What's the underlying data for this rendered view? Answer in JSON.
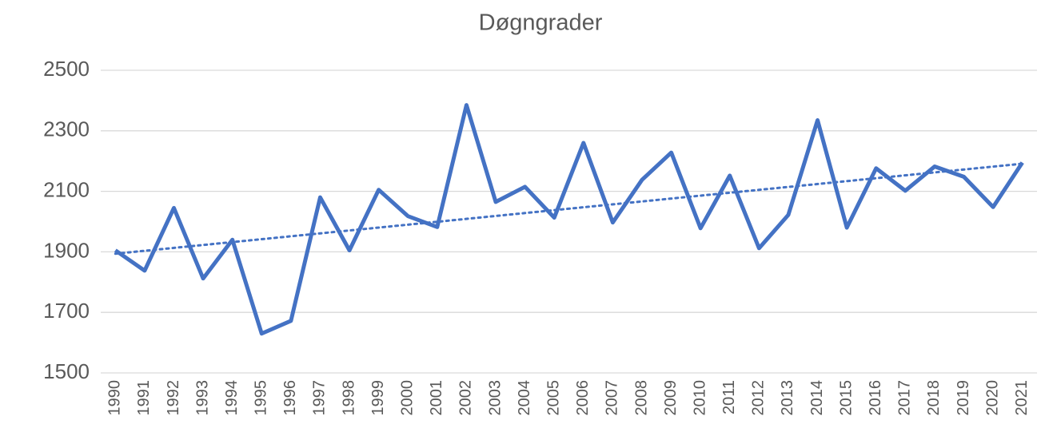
{
  "chart_data": {
    "type": "line",
    "title": "Døgngrader",
    "categories": [
      "1990",
      "1991",
      "1992",
      "1993",
      "1994",
      "1995",
      "1996",
      "1997",
      "1998",
      "1999",
      "2000",
      "2001",
      "2002",
      "2003",
      "2004",
      "2005",
      "2006",
      "2007",
      "2008",
      "2009",
      "2010",
      "2011",
      "2012",
      "2013",
      "2014",
      "2015",
      "2016",
      "2017",
      "2018",
      "2019",
      "2020",
      "2021"
    ],
    "values": [
      1905,
      1838,
      2045,
      1812,
      1940,
      1630,
      1672,
      2080,
      1905,
      2105,
      2018,
      1982,
      2385,
      2065,
      2115,
      2013,
      2260,
      1997,
      2138,
      2228,
      1978,
      2152,
      1912,
      2022,
      2335,
      1980,
      2176,
      2102,
      2182,
      2148,
      2048,
      2195
    ],
    "color": "#4472c4",
    "trendline": {
      "kind": "linear",
      "style": "dotted"
    },
    "ylim": [
      1500,
      2500
    ],
    "yticks": [
      1500,
      1700,
      1900,
      2100,
      2300,
      2500
    ],
    "grid": true
  }
}
